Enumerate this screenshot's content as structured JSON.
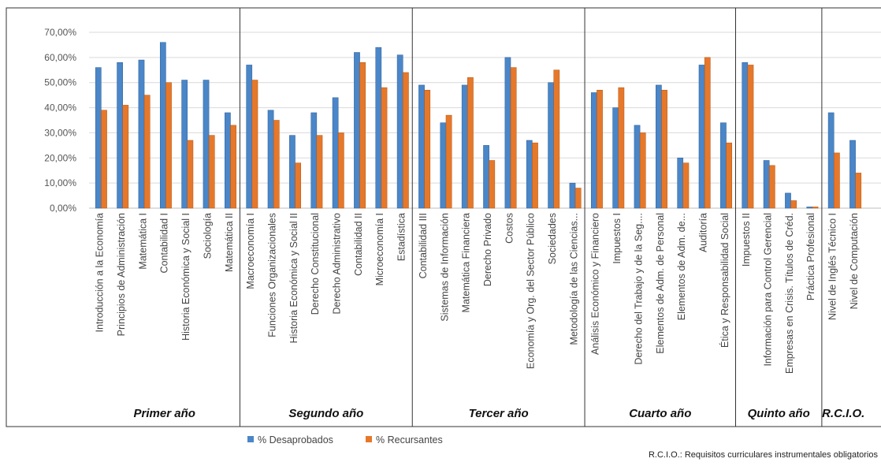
{
  "chart_data": {
    "type": "bar",
    "ylim": [
      0,
      0.7
    ],
    "y_ticks": [
      "0,00%",
      "10,00%",
      "20,00%",
      "30,00%",
      "40,00%",
      "50,00%",
      "60,00%",
      "70,00%"
    ],
    "grid": true,
    "legend_position": "bottom-left",
    "categories": [
      "Introducción a la Economía",
      "Principios de Administración",
      "Matemática I",
      "Contabilidad I",
      "Historia Económica y Social I",
      "Sociología",
      "Matemática II",
      "Macroeconomía I",
      "Funciones Organizacionales",
      "Historia Económica y Social II",
      "Derecho Constitucional",
      "Derecho Administrativo",
      "Contabilidad II",
      "Microeconomía I",
      "Estadística",
      "Contabilidad III",
      "Sistemas de Información",
      "Matemática Financiera",
      "Derecho Privado",
      "Costos",
      "Economía y Org. del Sector Público",
      "Sociedades",
      "Metodología de las Ciencias...",
      "Análisis Económico y Financiero",
      "Impuestos I",
      "Derecho del Trabajo y de la Seg....",
      "Elementos de Adm. de Personal",
      "Elementos de Adm. de...",
      "Auditoría",
      "Ética y Responsabilidad Social",
      "Impuestos II",
      "Información para Control Gerencial",
      "Empresas en Crisis. Títulos de Créd.",
      "Práctica Profesional",
      "Nivel de Inglés Técnico I",
      "Nivel de Computación"
    ],
    "groups": [
      {
        "label": "Primer año",
        "count": 7
      },
      {
        "label": "Segundo año",
        "count": 8
      },
      {
        "label": "Tercer año",
        "count": 8
      },
      {
        "label": "Cuarto año",
        "count": 7
      },
      {
        "label": "Quinto año",
        "count": 4
      },
      {
        "label": "R.C.I.O.",
        "count": 2
      }
    ],
    "series": [
      {
        "name": "% Desaprobados",
        "color": "#4a86c8",
        "values": [
          0.56,
          0.58,
          0.59,
          0.66,
          0.51,
          0.51,
          0.38,
          0.57,
          0.39,
          0.29,
          0.38,
          0.44,
          0.62,
          0.64,
          0.61,
          0.49,
          0.34,
          0.49,
          0.25,
          0.6,
          0.27,
          0.5,
          0.1,
          0.46,
          0.4,
          0.33,
          0.49,
          0.2,
          0.57,
          0.34,
          0.58,
          0.19,
          0.06,
          0.005,
          0.38,
          0.27
        ]
      },
      {
        "name": "% Recursantes",
        "color": "#e6782b",
        "values": [
          0.39,
          0.41,
          0.45,
          0.5,
          0.27,
          0.29,
          0.33,
          0.51,
          0.35,
          0.18,
          0.29,
          0.3,
          0.58,
          0.48,
          0.54,
          0.47,
          0.37,
          0.52,
          0.19,
          0.56,
          0.26,
          0.55,
          0.08,
          0.47,
          0.48,
          0.3,
          0.47,
          0.18,
          0.6,
          0.26,
          0.57,
          0.17,
          0.03,
          0.005,
          0.22,
          0.14
        ]
      }
    ]
  },
  "footnote": "R.C.I.O.: Requisitos curriculares instrumentales obligatorios"
}
